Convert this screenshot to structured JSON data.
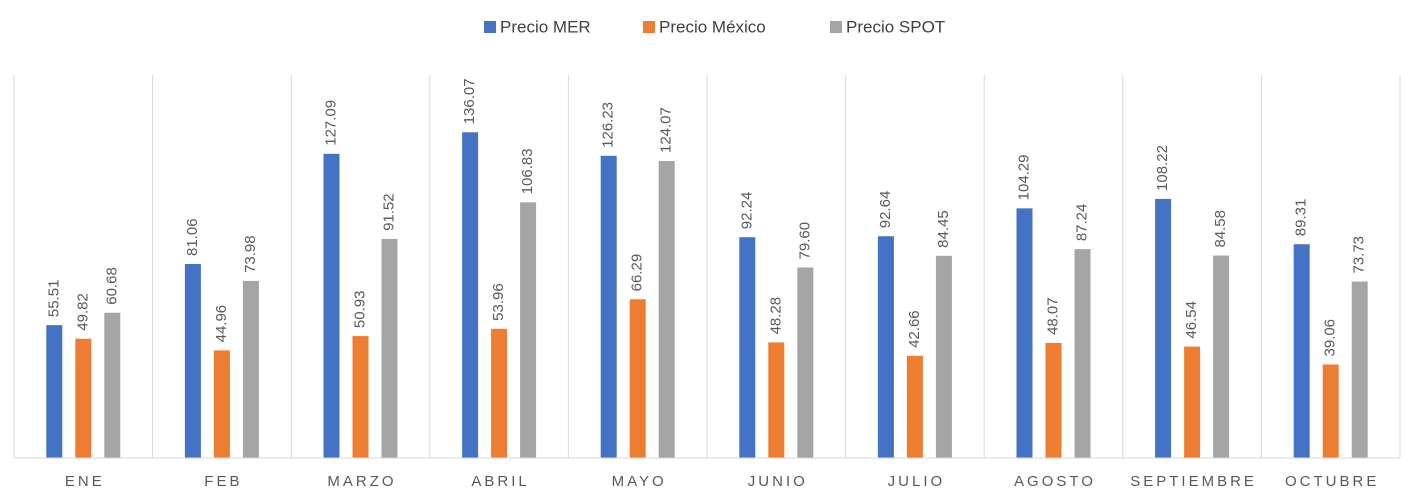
{
  "chart_data": {
    "type": "bar",
    "categories": [
      "ENE",
      "FEB",
      "MARZO",
      "ABRIL",
      "MAYO",
      "JUNIO",
      "JULIO",
      "AGOSTO",
      "SEPTIEMBRE",
      "OCTUBRE"
    ],
    "series": [
      {
        "name": "Precio MER",
        "color": "#4472c4",
        "values": [
          55.51,
          81.06,
          127.09,
          136.07,
          126.23,
          92.24,
          92.64,
          104.29,
          108.22,
          89.31
        ],
        "value_labels": [
          "55.51",
          "81.06",
          "127.09",
          "136.07",
          "126.23",
          "92.24",
          "92.64",
          "104.29",
          "108.22",
          "89.31"
        ]
      },
      {
        "name": "Precio México",
        "color": "#ed7d31",
        "values": [
          49.82,
          44.96,
          50.93,
          53.96,
          66.29,
          48.28,
          42.66,
          48.07,
          46.54,
          39.06
        ],
        "value_labels": [
          "49.82",
          "44.96",
          "50.93",
          "53.96",
          "66.29",
          "48.28",
          "42.66",
          "48.07",
          "46.54",
          "39.06"
        ]
      },
      {
        "name": "Precio SPOT",
        "color": "#a5a5a5",
        "values": [
          60.68,
          73.98,
          91.52,
          106.83,
          124.07,
          79.6,
          84.45,
          87.24,
          84.58,
          73.73
        ],
        "value_labels": [
          "60.68",
          "73.98",
          "91.52",
          "106.83",
          "124.07",
          "79.60",
          "84.45",
          "87.24",
          "84.58",
          "73.73"
        ]
      }
    ],
    "ylim": [
      0,
      160
    ],
    "legend": "top"
  }
}
